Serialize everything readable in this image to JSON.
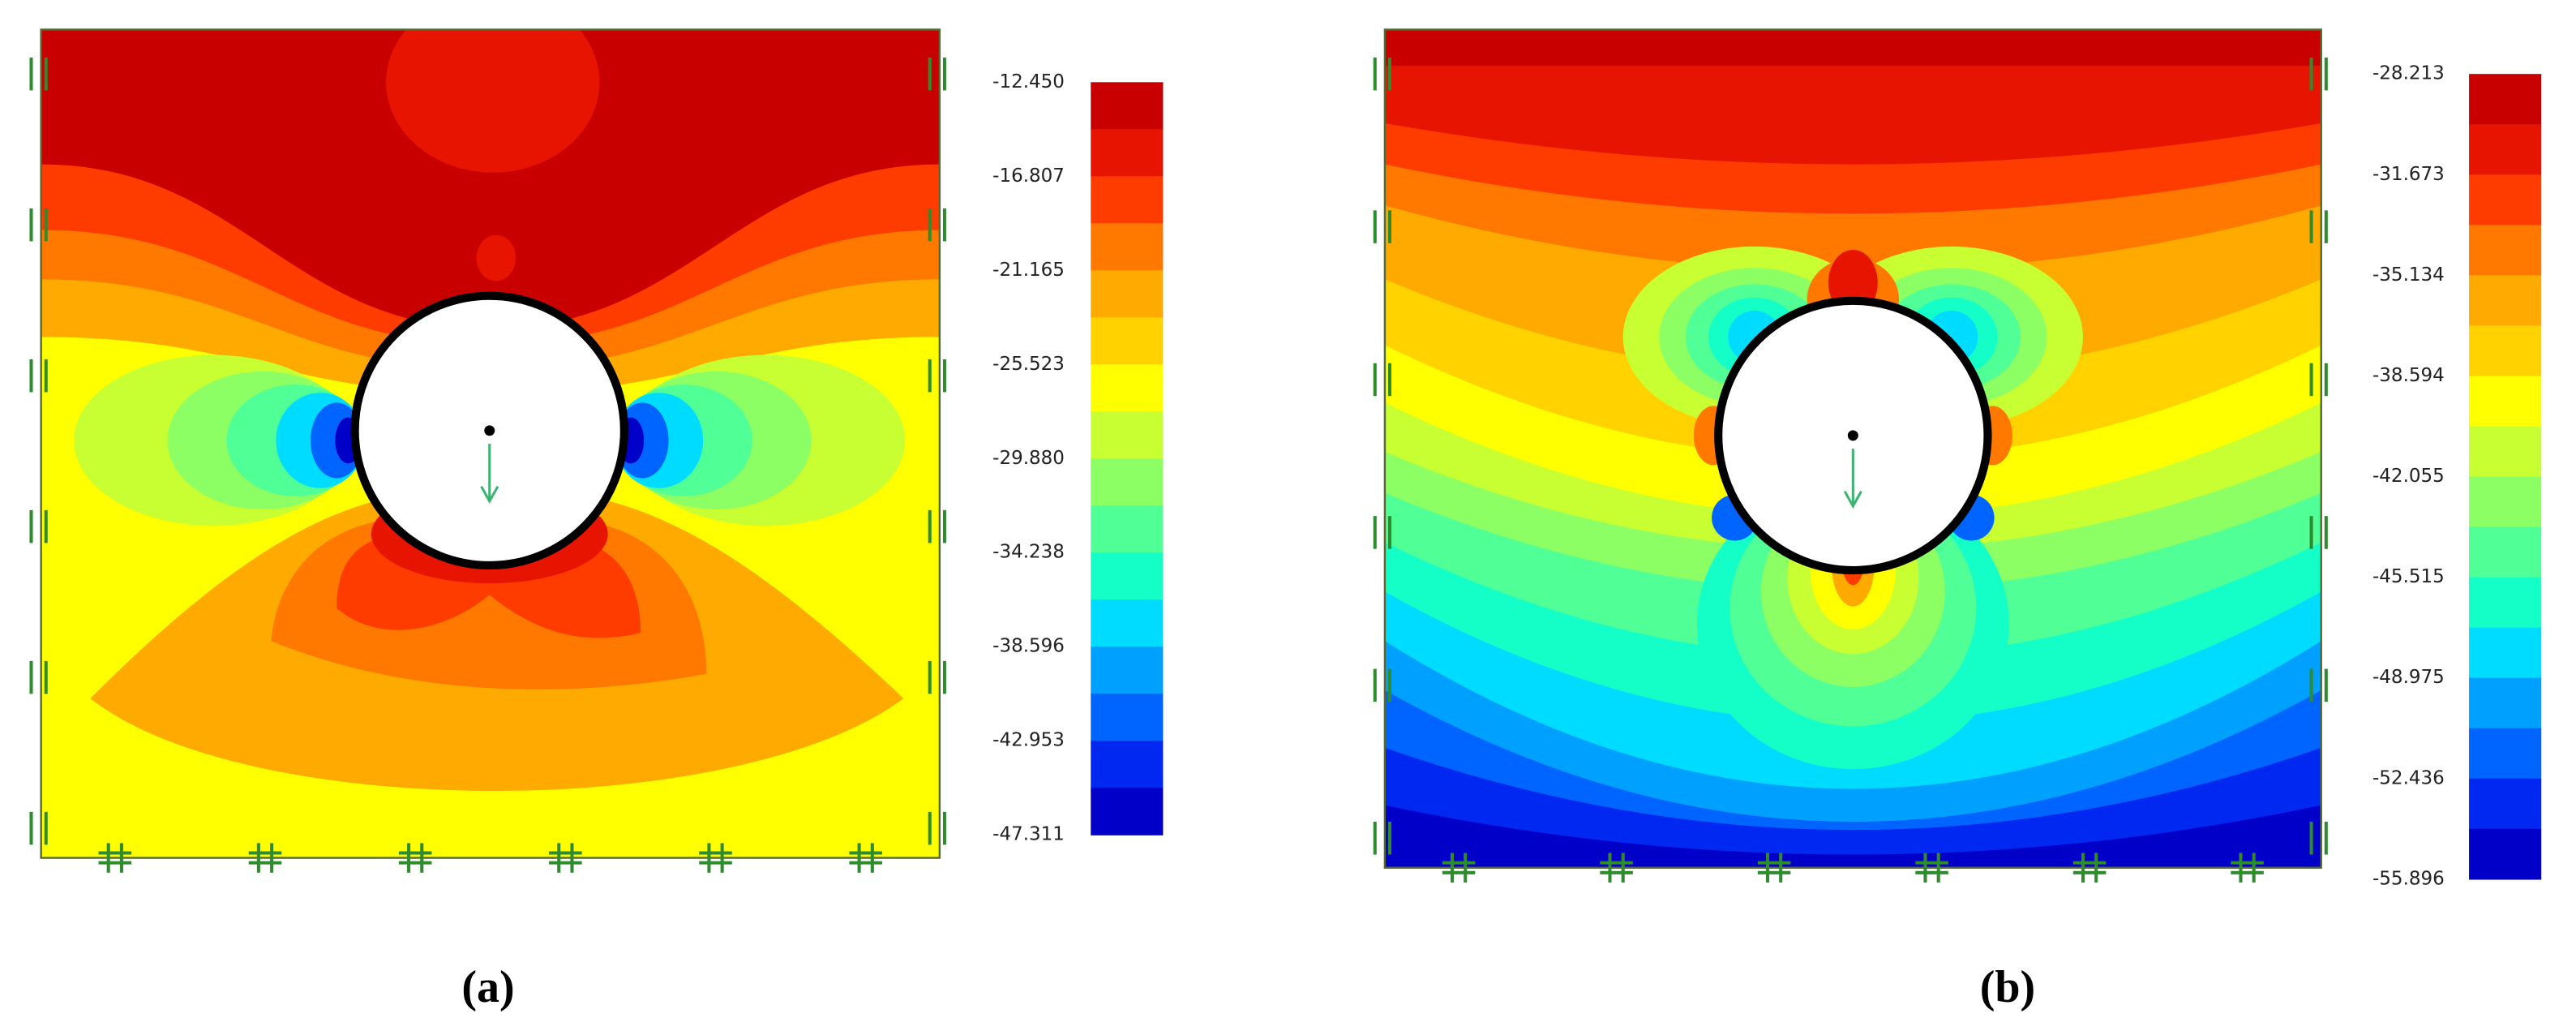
{
  "panels": [
    {
      "label": "(a)",
      "colorbar": {
        "ticks": [
          "-12.450",
          "-16.807",
          "-21.165",
          "-25.523",
          "-29.880",
          "-34.238",
          "-38.596",
          "-42.953",
          "-47.311"
        ],
        "colors": [
          "#c80000",
          "#e61400",
          "#ff3c00",
          "#ff7800",
          "#ffaa00",
          "#ffd200",
          "#ffff00",
          "#c8ff32",
          "#8cff64",
          "#50ff96",
          "#14ffc8",
          "#00dcff",
          "#00a0ff",
          "#0064ff",
          "#0028f0",
          "#0000c8"
        ]
      }
    },
    {
      "label": "(b)",
      "colorbar": {
        "ticks": [
          "-28.213",
          "-31.673",
          "-35.134",
          "-38.594",
          "-42.055",
          "-45.515",
          "-48.975",
          "-52.436",
          "-55.896"
        ],
        "colors": [
          "#c80000",
          "#e61400",
          "#ff3c00",
          "#ff7800",
          "#ffaa00",
          "#ffd200",
          "#ffff00",
          "#c8ff32",
          "#8cff64",
          "#50ff96",
          "#14ffc8",
          "#00dcff",
          "#00a0ff",
          "#0064ff",
          "#0028f0",
          "#0000c8"
        ]
      }
    }
  ]
}
